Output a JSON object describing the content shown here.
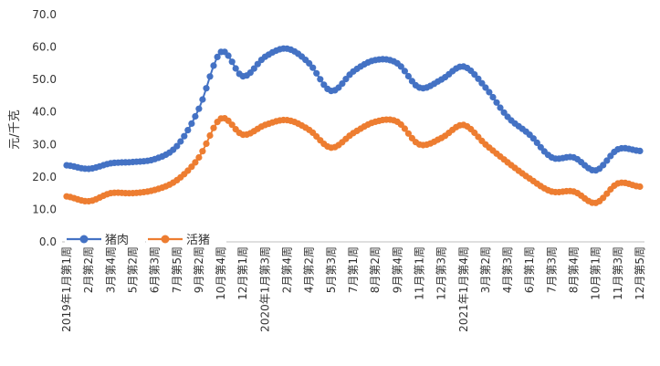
{
  "chart_data": {
    "type": "line",
    "title": "",
    "xlabel": "",
    "ylabel": "元/千克",
    "ylim": [
      0,
      70
    ],
    "yticks": [
      "0.0",
      "10.0",
      "20.0",
      "30.0",
      "40.0",
      "50.0",
      "60.0",
      "70.0"
    ],
    "grid": false,
    "legend_position": "bottom-left",
    "x_labels": [
      "2019年1月第1周",
      "2月第2周",
      "3月第4周",
      "5月第2周",
      "6月第3周",
      "7月第5周",
      "9月第2周",
      "10月第4周",
      "12月第1周",
      "2020年1月第3周",
      "2月第4周",
      "4月第2周",
      "5月第3周",
      "7月第1周",
      "8月第2周",
      "9月第4周",
      "11月第1周",
      "12月第3周",
      "2021年1月第4周",
      "3月第2周",
      "4月第3周",
      "6月第1周",
      "7月第3周",
      "8月第4周",
      "10月第1周",
      "11月第3周",
      "12月第5周"
    ],
    "series": [
      {
        "name": "猪肉",
        "color": "#4472C4",
        "values": [
          23.6,
          22.5,
          24.2,
          24.6,
          25.5,
          29.5,
          41.0,
          58.5,
          51.0,
          57.0,
          59.5,
          55.0,
          46.5,
          52.5,
          56.0,
          55.0,
          47.5,
          50.0,
          54.0,
          47.5,
          38.5,
          33.0,
          26.0,
          26.0,
          22.0,
          28.5,
          28.0
        ]
      },
      {
        "name": "活猪",
        "color": "#ED7D31",
        "values": [
          14.0,
          12.5,
          15.0,
          15.0,
          16.0,
          19.0,
          26.0,
          38.0,
          33.0,
          36.0,
          37.5,
          34.5,
          29.0,
          33.5,
          37.0,
          37.0,
          30.0,
          32.0,
          36.0,
          30.0,
          24.5,
          19.5,
          15.5,
          15.5,
          12.0,
          18.0,
          17.0
        ]
      }
    ]
  }
}
